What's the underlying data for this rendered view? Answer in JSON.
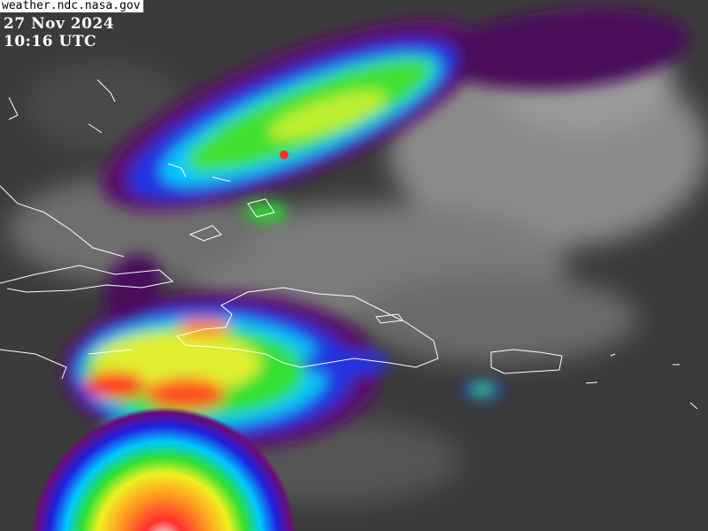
{
  "source": "weather.ndc.nasa.gov",
  "date": "27 Nov 2024",
  "time": "10:16 UTC",
  "imagery": {
    "type": "infrared satellite image with enhanced cloud-top color scale",
    "color_scale": [
      "#5a0a6a",
      "#2020e0",
      "#00d0ff",
      "#20e020",
      "#f0f020",
      "#ff3020",
      "#ffffff"
    ],
    "coastline_color": "#ffffff"
  }
}
